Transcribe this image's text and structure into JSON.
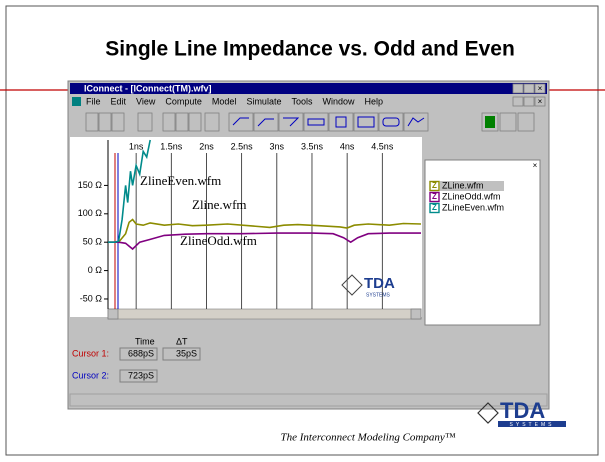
{
  "slide": {
    "title": "Single Line Impedance vs. Odd and Even",
    "footer": "The Interconnect Modeling Company™",
    "logo": {
      "name": "TDA",
      "sub": "SYSTEMS"
    }
  },
  "window": {
    "title": "IConnect - [IConnect(TM).wfv]",
    "menu": [
      "File",
      "Edit",
      "View",
      "Compute",
      "Model",
      "Simulate",
      "Tools",
      "Window",
      "Help"
    ],
    "cursors": {
      "headers": [
        "Time",
        "ΔT"
      ],
      "rows": [
        {
          "label": "Cursor 1:",
          "time": "688pS",
          "delta": "35pS"
        },
        {
          "label": "Cursor 2:",
          "time": "723pS"
        }
      ]
    }
  },
  "chart_data": {
    "type": "line",
    "xlim": [
      0.6,
      5.05
    ],
    "ylim": [
      -80,
      230
    ],
    "xticks": [
      {
        "value": 1,
        "label": "1ns"
      },
      {
        "value": 1.5,
        "label": "1.5ns"
      },
      {
        "value": 2,
        "label": "2ns"
      },
      {
        "value": 2.5,
        "label": "2.5ns"
      },
      {
        "value": 3,
        "label": "3ns"
      },
      {
        "value": 3.5,
        "label": "3.5ns"
      },
      {
        "value": 4,
        "label": "4ns"
      },
      {
        "value": 4.5,
        "label": "4.5ns"
      }
    ],
    "yticks": [
      {
        "value": 150,
        "label": "150 Ω"
      },
      {
        "value": 100,
        "label": "100 Ω"
      },
      {
        "value": 50,
        "label": "50 Ω"
      },
      {
        "value": 0,
        "label": "0 Ω"
      },
      {
        "value": -50,
        "label": "-50 Ω"
      }
    ],
    "grid": "x",
    "annotations": [
      "ZlineEven.wfm",
      "Zline.wfm",
      "ZlineOdd.wfm"
    ],
    "series": [
      {
        "name": "ZLine.wfm",
        "color": "#8c8c00",
        "x": [
          0.6,
          0.75,
          0.85,
          0.9,
          0.95,
          1.0,
          1.1,
          1.2,
          1.4,
          1.6,
          1.8,
          2.0,
          2.3,
          2.6,
          2.9,
          3.1,
          3.3,
          3.6,
          3.9,
          4.0,
          4.1,
          4.3,
          4.6,
          4.8,
          5.05
        ],
        "values": [
          50,
          50,
          65,
          85,
          90,
          82,
          80,
          84,
          80,
          82,
          79,
          80,
          82,
          79,
          76,
          80,
          81,
          79,
          77,
          75,
          80,
          82,
          80,
          83,
          82
        ]
      },
      {
        "name": "ZLineOdd.wfm",
        "color": "#800080",
        "x": [
          0.6,
          0.75,
          0.85,
          0.95,
          1.05,
          1.2,
          1.4,
          1.7,
          2.0,
          2.5,
          3.0,
          3.5,
          3.8,
          3.95,
          4.05,
          4.15,
          4.3,
          4.6,
          5.05
        ],
        "values": [
          50,
          50,
          48,
          38,
          50,
          55,
          62,
          64,
          65,
          65,
          66,
          66,
          65,
          58,
          50,
          58,
          65,
          66,
          66
        ]
      },
      {
        "name": "ZLineEven.wfm",
        "color": "#008b8b",
        "x": [
          0.6,
          0.7,
          0.75,
          0.8,
          0.85,
          0.88,
          0.92,
          0.95,
          1.0,
          1.05,
          1.1,
          1.15,
          1.2
        ],
        "values": [
          50,
          50,
          52,
          90,
          150,
          120,
          175,
          150,
          185,
          170,
          210,
          200,
          230
        ]
      }
    ]
  }
}
